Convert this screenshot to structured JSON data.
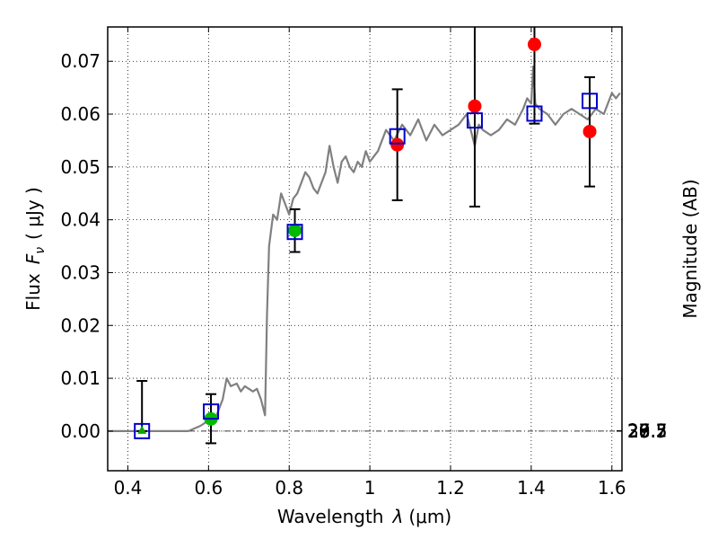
{
  "chart_data": {
    "type": "scatter",
    "xlabel_text": "Wavelength",
    "xlabel_symbol": "λ",
    "xlabel_unit": "(μm)",
    "ylabel_text": "Flux",
    "ylabel_symbol": "F",
    "ylabel_subscript": "ν",
    "ylabel_unit": "( μJy )",
    "y2label": "Magnitude (AB)",
    "xlim": [
      0.35,
      1.625
    ],
    "ylim": [
      -0.0075,
      0.0765
    ],
    "grid": true,
    "x_ticks": [
      {
        "value": 0.4,
        "label": "0.4"
      },
      {
        "value": 0.6,
        "label": "0.6"
      },
      {
        "value": 0.8,
        "label": "0.8"
      },
      {
        "value": 1.0,
        "label": "1"
      },
      {
        "value": 1.2,
        "label": "1.2"
      },
      {
        "value": 1.4,
        "label": "1.4"
      },
      {
        "value": 1.6,
        "label": "1.6"
      }
    ],
    "y_ticks": [
      {
        "value": 0.0,
        "label": "0.00"
      },
      {
        "value": 0.01,
        "label": "0.01"
      },
      {
        "value": 0.02,
        "label": "0.02"
      },
      {
        "value": 0.03,
        "label": "0.03"
      },
      {
        "value": 0.04,
        "label": "0.04"
      },
      {
        "value": 0.05,
        "label": "0.05"
      },
      {
        "value": 0.06,
        "label": "0.06"
      },
      {
        "value": 0.07,
        "label": "0.07"
      }
    ],
    "y2_ticks": [
      {
        "value": 26.7,
        "label": "26.7"
      },
      {
        "value": 27.0,
        "label": "27"
      },
      {
        "value": 27.2,
        "label": "27.2"
      },
      {
        "value": 27.5,
        "label": "27.5"
      },
      {
        "value": 28.0,
        "label": "28"
      },
      {
        "value": 28.5,
        "label": "28.5"
      },
      {
        "value": 29.0,
        "label": "29"
      },
      {
        "value": 30.0,
        "label": "30"
      }
    ],
    "sed_model": {
      "color": "#808080",
      "x": [
        0.35,
        0.55,
        0.58,
        0.6,
        0.62,
        0.635,
        0.645,
        0.655,
        0.67,
        0.68,
        0.69,
        0.7,
        0.71,
        0.72,
        0.73,
        0.74,
        0.745,
        0.75,
        0.76,
        0.77,
        0.78,
        0.79,
        0.8,
        0.81,
        0.82,
        0.83,
        0.84,
        0.85,
        0.86,
        0.87,
        0.88,
        0.89,
        0.9,
        0.91,
        0.92,
        0.93,
        0.94,
        0.95,
        0.96,
        0.97,
        0.98,
        0.99,
        1.0,
        1.01,
        1.02,
        1.04,
        1.06,
        1.08,
        1.1,
        1.12,
        1.14,
        1.16,
        1.18,
        1.2,
        1.22,
        1.24,
        1.26,
        1.27,
        1.28,
        1.3,
        1.32,
        1.34,
        1.36,
        1.38,
        1.39,
        1.4,
        1.405,
        1.41,
        1.42,
        1.44,
        1.46,
        1.48,
        1.5,
        1.52,
        1.54,
        1.56,
        1.58,
        1.6,
        1.61,
        1.62
      ],
      "y": [
        0.0,
        0.0,
        0.001,
        0.002,
        0.003,
        0.006,
        0.01,
        0.0085,
        0.009,
        0.0075,
        0.0085,
        0.008,
        0.0075,
        0.008,
        0.006,
        0.003,
        0.022,
        0.035,
        0.041,
        0.04,
        0.045,
        0.043,
        0.041,
        0.044,
        0.045,
        0.047,
        0.049,
        0.048,
        0.046,
        0.045,
        0.047,
        0.049,
        0.054,
        0.05,
        0.047,
        0.051,
        0.052,
        0.05,
        0.049,
        0.051,
        0.05,
        0.053,
        0.051,
        0.052,
        0.053,
        0.057,
        0.055,
        0.058,
        0.056,
        0.059,
        0.055,
        0.058,
        0.056,
        0.057,
        0.058,
        0.06,
        0.054,
        0.058,
        0.057,
        0.056,
        0.057,
        0.059,
        0.058,
        0.061,
        0.063,
        0.062,
        0.069,
        0.062,
        0.061,
        0.06,
        0.058,
        0.06,
        0.061,
        0.06,
        0.059,
        0.061,
        0.06,
        0.064,
        0.063,
        0.064
      ]
    },
    "points": [
      {
        "x": 0.435,
        "y": 0.0,
        "yerr_low": 0.0,
        "yerr_high": 0.0095,
        "marker": "triangle",
        "color": "#00aa00"
      },
      {
        "x": 0.606,
        "y": 0.0023,
        "yerr_low": 0.0046,
        "yerr_high": 0.0047,
        "marker": "circle",
        "color": "#00bb00"
      },
      {
        "x": 0.814,
        "y": 0.038,
        "yerr_low": 0.0041,
        "yerr_high": 0.004,
        "marker": "circle",
        "color": "#00bb00"
      },
      {
        "x": 1.068,
        "y": 0.0542,
        "yerr_low": 0.0105,
        "yerr_high": 0.0105,
        "marker": "circle",
        "color": "#ff0000"
      },
      {
        "x": 1.26,
        "y": 0.0615,
        "yerr_low": 0.019,
        "yerr_high": 0.0165,
        "marker": "circle",
        "color": "#ff0000"
      },
      {
        "x": 1.408,
        "y": 0.0732,
        "yerr_low": 0.015,
        "yerr_high": 0.0035,
        "marker": "circle",
        "color": "#ff0000"
      },
      {
        "x": 1.545,
        "y": 0.0567,
        "yerr_low": 0.0104,
        "yerr_high": 0.0103,
        "marker": "circle",
        "color": "#ff0000"
      }
    ],
    "model_photometry": {
      "color": "#0000cc",
      "marker": "open-square",
      "x": [
        0.435,
        0.606,
        0.814,
        1.068,
        1.26,
        1.408,
        1.545
      ],
      "y": [
        0.0,
        0.0037,
        0.0377,
        0.0558,
        0.0588,
        0.0601,
        0.0625
      ]
    },
    "zero_line": {
      "y": 0.0,
      "style": "dash-dot",
      "color": "#000000"
    }
  }
}
